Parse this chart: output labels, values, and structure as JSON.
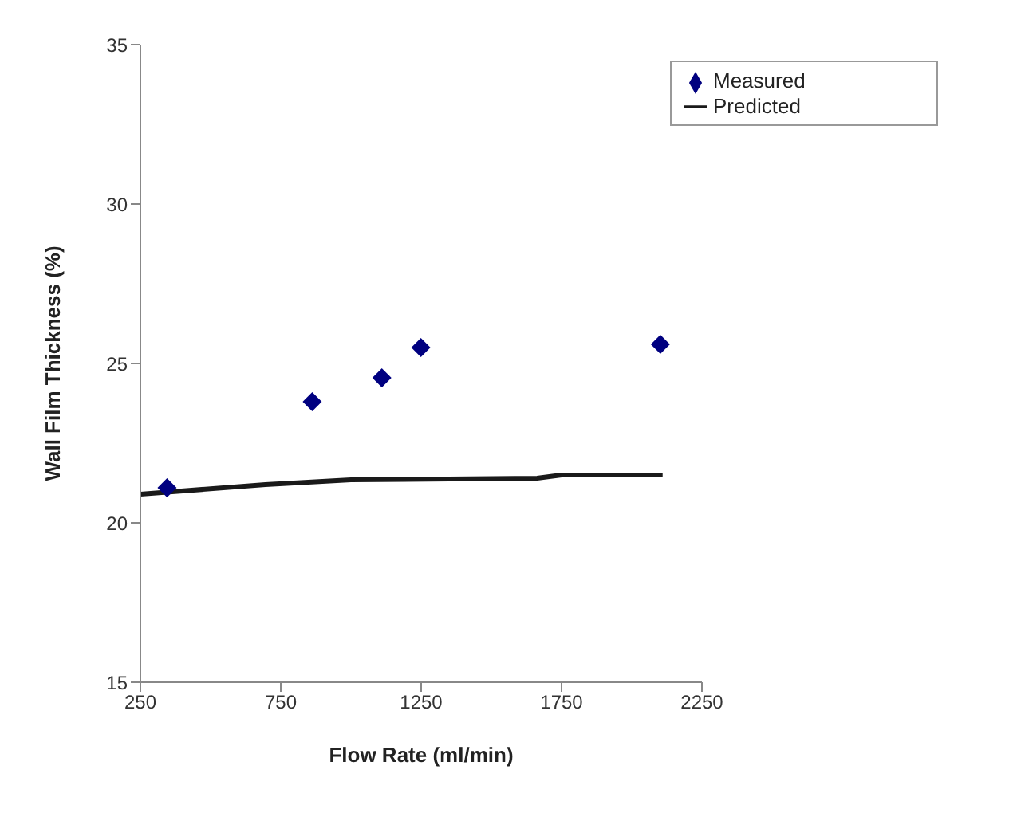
{
  "chart_data": {
    "type": "scatter",
    "xlabel": "Flow Rate (ml/min)",
    "ylabel": "Wall Film Thickness (%)",
    "series": [
      {
        "name": "Measured",
        "marker": "diamond",
        "color": "#000080",
        "x": [
          345,
          862,
          1110,
          1249,
          2102
        ],
        "values": [
          21.1,
          23.8,
          24.55,
          25.5,
          25.6
        ]
      },
      {
        "name": "Predicted",
        "type": "line",
        "marker": "none",
        "color": "#1a1a1a",
        "x": [
          250,
          695,
          1000,
          1663,
          1750,
          2110
        ],
        "values": [
          20.9,
          21.2,
          21.35,
          21.4,
          21.5,
          21.5
        ]
      }
    ],
    "xlim": [
      250,
      2250
    ],
    "xticks": [
      250,
      750,
      1250,
      1750,
      2250
    ],
    "ylim": [
      15,
      35
    ],
    "yticks": [
      15,
      20,
      25,
      30,
      35
    ],
    "grid": false,
    "legend": "top right"
  }
}
